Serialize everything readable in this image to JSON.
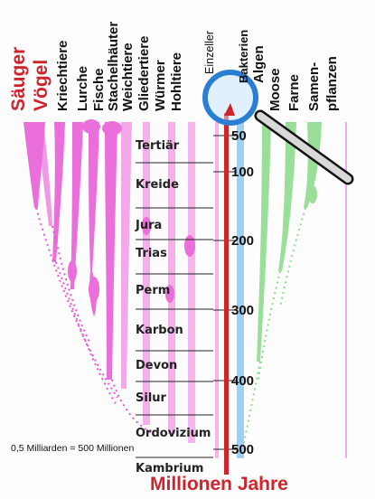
{
  "groups_red": [
    "Säuger",
    "Vögel"
  ],
  "groups_animal": [
    "Kriechtiere",
    "Lurche",
    "Fische",
    "Stachelhäuter",
    "Weichtiere",
    "Gliedertiere",
    "Würmer",
    "Hohltiere"
  ],
  "group_small": "Einzeller",
  "groups_plant": [
    "Bakterien",
    "Algen",
    "Moose",
    "Farne",
    "Samen-",
    "pflanzen"
  ],
  "eras": [
    "Tertiär",
    "Kreide",
    "Jura",
    "Trias",
    "Perm",
    "Karbon",
    "Devon",
    "Silur",
    "Ordovizium",
    "Kambrium"
  ],
  "ticks": [
    "50",
    "100",
    "200",
    "300",
    "400",
    "500"
  ],
  "axis_title": "Millionen Jahre",
  "note": "0,5 Milliarden = 500 Millionen",
  "colors": {
    "animal": "#e857d6",
    "animal_light": "#f5b4ee",
    "plant": "#8fdc8f",
    "bacteria": "#9fd0f0",
    "axis": "#d0242c",
    "magnifier": "#2a7fd4"
  },
  "icons": [
    "magnifier-icon"
  ]
}
